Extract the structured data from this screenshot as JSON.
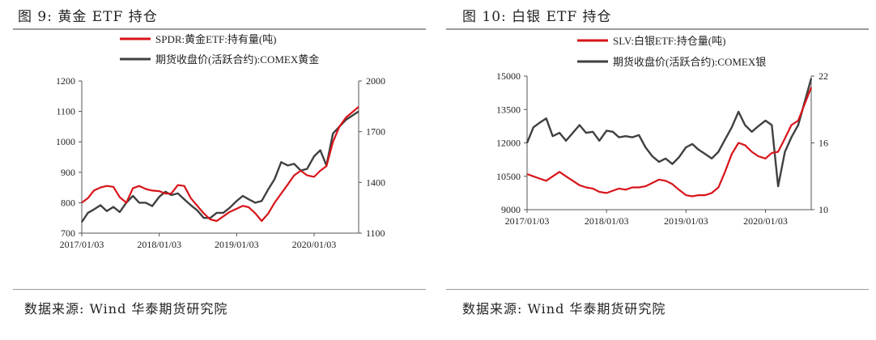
{
  "figures": [
    {
      "title": "图 9: 黄金 ETF 持仓",
      "source": "数据来源: Wind 华泰期货研究院"
    },
    {
      "title": "图 10: 白银 ETF 持仓",
      "source": "数据来源: Wind 华泰期货研究院"
    }
  ],
  "chart_data": [
    {
      "type": "line",
      "title": "",
      "x_ticks": [
        "2017/01/03",
        "2018/01/03",
        "2019/01/03",
        "2020/01/03"
      ],
      "x_range": [
        "2017/01/03",
        "2020/07/31"
      ],
      "y_left": {
        "ticks": [
          700,
          800,
          900,
          1000,
          1100,
          1200
        ],
        "range": [
          700,
          1200
        ]
      },
      "y_right": {
        "ticks": [
          1100,
          1400,
          1700,
          2000
        ],
        "range": [
          1100,
          2000
        ]
      },
      "grid": false,
      "legend": "top-center",
      "series": [
        {
          "name": "SPDR:黄金ETF:持有量(吨)",
          "axis": "left",
          "color": "#d7141a",
          "points": [
            [
              "2017/01/03",
              800
            ],
            [
              "2017/02/01",
              815
            ],
            [
              "2017/03/01",
              840
            ],
            [
              "2017/04/01",
              850
            ],
            [
              "2017/05/01",
              855
            ],
            [
              "2017/06/01",
              852
            ],
            [
              "2017/07/01",
              818
            ],
            [
              "2017/08/01",
              800
            ],
            [
              "2017/09/01",
              848
            ],
            [
              "2017/10/01",
              855
            ],
            [
              "2017/11/01",
              845
            ],
            [
              "2017/12/01",
              840
            ],
            [
              "2018/01/03",
              838
            ],
            [
              "2018/02/01",
              830
            ],
            [
              "2018/03/01",
              830
            ],
            [
              "2018/04/01",
              858
            ],
            [
              "2018/05/01",
              855
            ],
            [
              "2018/06/01",
              815
            ],
            [
              "2018/07/01",
              790
            ],
            [
              "2018/08/01",
              765
            ],
            [
              "2018/09/01",
              745
            ],
            [
              "2018/10/01",
              740
            ],
            [
              "2018/11/01",
              755
            ],
            [
              "2018/12/01",
              770
            ],
            [
              "2019/01/03",
              780
            ],
            [
              "2019/02/01",
              790
            ],
            [
              "2019/03/01",
              785
            ],
            [
              "2019/04/01",
              765
            ],
            [
              "2019/05/01",
              740
            ],
            [
              "2019/06/01",
              765
            ],
            [
              "2019/07/01",
              800
            ],
            [
              "2019/08/01",
              830
            ],
            [
              "2019/09/01",
              860
            ],
            [
              "2019/10/01",
              890
            ],
            [
              "2019/11/01",
              905
            ],
            [
              "2019/12/01",
              890
            ],
            [
              "2020/01/03",
              885
            ],
            [
              "2020/02/01",
              905
            ],
            [
              "2020/03/01",
              920
            ],
            [
              "2020/04/01",
              1000
            ],
            [
              "2020/05/01",
              1050
            ],
            [
              "2020/06/01",
              1080
            ],
            [
              "2020/07/31",
              1115
            ]
          ]
        },
        {
          "name": "期货收盘价(活跃合约):COMEX黄金",
          "axis": "right",
          "color": "#404040",
          "points": [
            [
              "2017/01/03",
              1165
            ],
            [
              "2017/02/01",
              1220
            ],
            [
              "2017/03/01",
              1240
            ],
            [
              "2017/04/01",
              1265
            ],
            [
              "2017/05/01",
              1230
            ],
            [
              "2017/06/01",
              1255
            ],
            [
              "2017/07/01",
              1225
            ],
            [
              "2017/08/01",
              1280
            ],
            [
              "2017/09/01",
              1320
            ],
            [
              "2017/10/01",
              1280
            ],
            [
              "2017/11/01",
              1280
            ],
            [
              "2017/12/01",
              1260
            ],
            [
              "2018/01/03",
              1315
            ],
            [
              "2018/02/01",
              1345
            ],
            [
              "2018/03/01",
              1325
            ],
            [
              "2018/04/01",
              1335
            ],
            [
              "2018/05/01",
              1300
            ],
            [
              "2018/06/01",
              1265
            ],
            [
              "2018/07/01",
              1235
            ],
            [
              "2018/08/01",
              1190
            ],
            [
              "2018/09/01",
              1190
            ],
            [
              "2018/10/01",
              1220
            ],
            [
              "2018/11/01",
              1220
            ],
            [
              "2018/12/01",
              1250
            ],
            [
              "2019/01/03",
              1290
            ],
            [
              "2019/02/01",
              1320
            ],
            [
              "2019/03/01",
              1300
            ],
            [
              "2019/04/01",
              1280
            ],
            [
              "2019/05/01",
              1290
            ],
            [
              "2019/06/01",
              1360
            ],
            [
              "2019/07/01",
              1420
            ],
            [
              "2019/08/01",
              1520
            ],
            [
              "2019/09/01",
              1500
            ],
            [
              "2019/10/01",
              1510
            ],
            [
              "2019/11/01",
              1470
            ],
            [
              "2019/12/01",
              1480
            ],
            [
              "2020/01/03",
              1555
            ],
            [
              "2020/02/01",
              1590
            ],
            [
              "2020/03/01",
              1500
            ],
            [
              "2020/04/01",
              1690
            ],
            [
              "2020/05/01",
              1730
            ],
            [
              "2020/06/01",
              1770
            ],
            [
              "2020/07/31",
              1820
            ]
          ]
        }
      ]
    },
    {
      "type": "line",
      "title": "",
      "x_ticks": [
        "2017/01/03",
        "2018/01/03",
        "2019/01/03",
        "2020/01/03"
      ],
      "x_range": [
        "2017/01/03",
        "2020/07/31"
      ],
      "y_left": {
        "ticks": [
          9000,
          10500,
          12000,
          13500,
          15000
        ],
        "range": [
          9000,
          15000
        ]
      },
      "y_right": {
        "ticks": [
          10,
          16,
          22
        ],
        "range": [
          10,
          22
        ]
      },
      "grid": false,
      "legend": "top-center",
      "series": [
        {
          "name": "SLV:白银ETF:持仓量(吨)",
          "axis": "left",
          "color": "#d7141a",
          "points": [
            [
              "2017/01/03",
              10600
            ],
            [
              "2017/02/01",
              10500
            ],
            [
              "2017/03/01",
              10400
            ],
            [
              "2017/04/01",
              10300
            ],
            [
              "2017/05/01",
              10500
            ],
            [
              "2017/06/01",
              10700
            ],
            [
              "2017/07/01",
              10500
            ],
            [
              "2017/08/01",
              10300
            ],
            [
              "2017/09/01",
              10100
            ],
            [
              "2017/10/01",
              10000
            ],
            [
              "2017/11/01",
              9950
            ],
            [
              "2017/12/01",
              9800
            ],
            [
              "2018/01/03",
              9750
            ],
            [
              "2018/02/01",
              9850
            ],
            [
              "2018/03/01",
              9950
            ],
            [
              "2018/04/01",
              9900
            ],
            [
              "2018/05/01",
              10000
            ],
            [
              "2018/06/01",
              10000
            ],
            [
              "2018/07/01",
              10050
            ],
            [
              "2018/08/01",
              10200
            ],
            [
              "2018/09/01",
              10350
            ],
            [
              "2018/10/01",
              10300
            ],
            [
              "2018/11/01",
              10150
            ],
            [
              "2018/12/01",
              9900
            ],
            [
              "2019/01/03",
              9650
            ],
            [
              "2019/02/01",
              9600
            ],
            [
              "2019/03/01",
              9650
            ],
            [
              "2019/04/01",
              9650
            ],
            [
              "2019/05/01",
              9750
            ],
            [
              "2019/06/01",
              10000
            ],
            [
              "2019/07/01",
              10700
            ],
            [
              "2019/08/01",
              11500
            ],
            [
              "2019/09/01",
              12000
            ],
            [
              "2019/10/01",
              11900
            ],
            [
              "2019/11/01",
              11600
            ],
            [
              "2019/12/01",
              11400
            ],
            [
              "2020/01/03",
              11300
            ],
            [
              "2020/02/01",
              11550
            ],
            [
              "2020/03/01",
              11600
            ],
            [
              "2020/04/01",
              12200
            ],
            [
              "2020/05/01",
              12800
            ],
            [
              "2020/06/01",
              13000
            ],
            [
              "2020/07/31",
              14500
            ]
          ]
        },
        {
          "name": "期货收盘价(活跃合约):COMEX银",
          "axis": "right",
          "color": "#404040",
          "points": [
            [
              "2017/01/03",
              16.0
            ],
            [
              "2017/02/01",
              17.4
            ],
            [
              "2017/03/01",
              17.8
            ],
            [
              "2017/04/01",
              18.2
            ],
            [
              "2017/05/01",
              16.6
            ],
            [
              "2017/06/01",
              16.9
            ],
            [
              "2017/07/01",
              16.2
            ],
            [
              "2017/08/01",
              16.9
            ],
            [
              "2017/09/01",
              17.6
            ],
            [
              "2017/10/01",
              16.9
            ],
            [
              "2017/11/01",
              17.0
            ],
            [
              "2017/12/01",
              16.2
            ],
            [
              "2018/01/03",
              17.1
            ],
            [
              "2018/02/01",
              17.0
            ],
            [
              "2018/03/01",
              16.5
            ],
            [
              "2018/04/01",
              16.6
            ],
            [
              "2018/05/01",
              16.5
            ],
            [
              "2018/06/01",
              16.7
            ],
            [
              "2018/07/01",
              15.6
            ],
            [
              "2018/08/01",
              14.8
            ],
            [
              "2018/09/01",
              14.3
            ],
            [
              "2018/10/01",
              14.6
            ],
            [
              "2018/11/01",
              14.1
            ],
            [
              "2018/12/01",
              14.7
            ],
            [
              "2019/01/03",
              15.6
            ],
            [
              "2019/02/01",
              15.9
            ],
            [
              "2019/03/01",
              15.4
            ],
            [
              "2019/04/01",
              15.0
            ],
            [
              "2019/05/01",
              14.6
            ],
            [
              "2019/06/01",
              15.2
            ],
            [
              "2019/07/01",
              16.3
            ],
            [
              "2019/08/01",
              17.4
            ],
            [
              "2019/09/01",
              18.8
            ],
            [
              "2019/10/01",
              17.6
            ],
            [
              "2019/11/01",
              17.0
            ],
            [
              "2019/12/01",
              17.5
            ],
            [
              "2020/01/03",
              18.0
            ],
            [
              "2020/02/01",
              17.6
            ],
            [
              "2020/03/01",
              12.1
            ],
            [
              "2020/04/01",
              15.2
            ],
            [
              "2020/05/01",
              16.5
            ],
            [
              "2020/06/01",
              17.6
            ],
            [
              "2020/07/31",
              21.8
            ]
          ]
        }
      ]
    }
  ]
}
